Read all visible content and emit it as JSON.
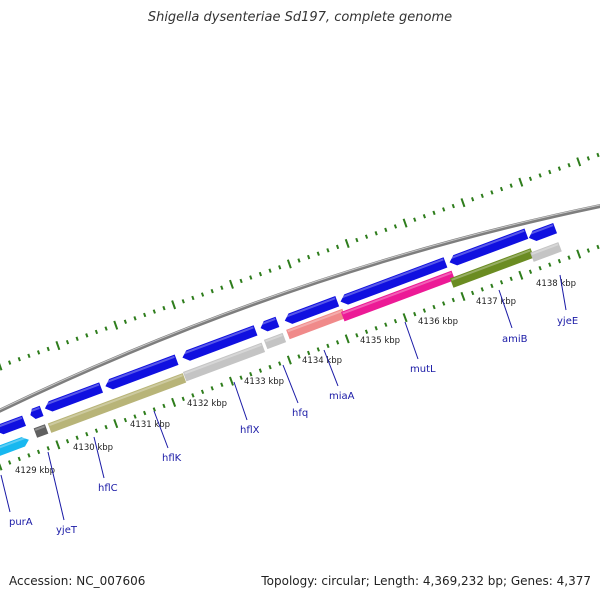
{
  "title": "Shigella dysenteriae Sd197, complete genome",
  "footer": {
    "accession": "Accession: NC_007606",
    "summary": "Topology: circular; Length: 4,369,232 bp; Genes: 4,377"
  },
  "colors": {
    "backbone": "#888888",
    "tick": "#2e7d1c",
    "arrow": "#1010e0",
    "label": "#1a1aa6",
    "cyan": "#18b8f0",
    "khaki": "#b8b478",
    "lightgray": "#c4c4c4",
    "darkgray": "#606060",
    "salmon": "#f08a8a",
    "magenta": "#ec1a96",
    "olive": "#6b8c22"
  },
  "scale_labels": [
    "4129 kbp",
    "4130 kbp",
    "4131 kbp",
    "4132 kbp",
    "4133 kbp",
    "4134 kbp",
    "4135 kbp",
    "4136 kbp",
    "4137 kbp",
    "4138 kbp"
  ],
  "gene_labels": [
    "purA",
    "yjeT",
    "hflC",
    "hflK",
    "hflX",
    "hfq",
    "miaA",
    "mutL",
    "amiB",
    "yjeE"
  ]
}
